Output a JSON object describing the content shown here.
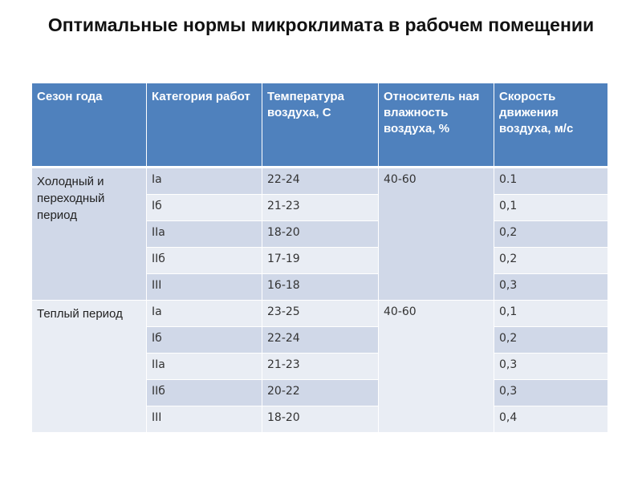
{
  "slide": {
    "title": "Оптимальные нормы микроклимата в рабочем помещении"
  },
  "table": {
    "headers": [
      "Сезон года",
      "Категория работ",
      "Температура воздуха, С",
      "Относитель ная влажность воздуха, %",
      "Скорость движения воздуха, м/с"
    ],
    "groups": [
      {
        "season": "Холодный и переходный период",
        "humidity": "40-60",
        "rows": [
          {
            "category": "Ia",
            "temperature": "22-24",
            "speed": "0.1"
          },
          {
            "category": "Iб",
            "temperature": "21-23",
            "speed": "0,1"
          },
          {
            "category": "IIa",
            "temperature": "18-20",
            "speed": "0,2"
          },
          {
            "category": "IIб",
            "temperature": "17-19",
            "speed": "0,2"
          },
          {
            "category": "III",
            "temperature": "16-18",
            "speed": "0,3"
          }
        ]
      },
      {
        "season": "Теплый период",
        "humidity": "40-60",
        "rows": [
          {
            "category": "Ia",
            "temperature": "23-25",
            "speed": "0,1"
          },
          {
            "category": "Iб",
            "temperature": "22-24",
            "speed": "0,2"
          },
          {
            "category": "IIa",
            "temperature": "21-23",
            "speed": "0,3"
          },
          {
            "category": "IIб",
            "temperature": "20-22",
            "speed": "0,3"
          },
          {
            "category": "III",
            "temperature": "18-20",
            "speed": "0,4"
          }
        ]
      }
    ]
  },
  "colors": {
    "header_bg": "#4f81bd",
    "band_dark": "#d0d8e8",
    "band_light": "#e9edf4"
  }
}
